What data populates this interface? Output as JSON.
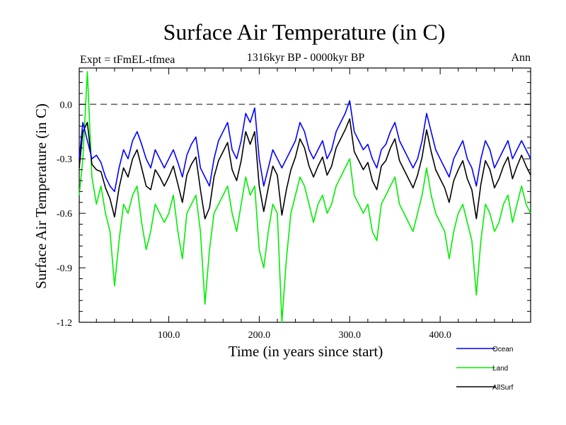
{
  "chart_data": {
    "type": "line",
    "title": "Surface Air Temperature (in C)",
    "subtitle": "1316kyr BP - 0000kyr BP",
    "left_label": "Expt = tFmEL-tfmea",
    "right_label": "Ann",
    "xlabel": "Time (in years since start)",
    "ylabel": "Surface Air Temperature (in C)",
    "xlim": [
      1,
      500
    ],
    "ylim": [
      -1.2,
      0.2
    ],
    "xticks": [
      100,
      200,
      300,
      400
    ],
    "xtick_labels": [
      "100.0",
      "200.0",
      "300.0",
      "400.0"
    ],
    "yticks": [
      -1.2,
      -0.9,
      -0.6,
      -0.3,
      0.0
    ],
    "ytick_labels": [
      "-1.2",
      "-0.9",
      "-0.6",
      "-0.3",
      "0.0"
    ],
    "reference_line": 0.0,
    "legend_position": "bottom-right",
    "series": [
      {
        "name": "Ocean",
        "color": "#0000ff",
        "x": [
          1,
          5,
          10,
          15,
          20,
          25,
          30,
          35,
          40,
          45,
          50,
          55,
          60,
          65,
          70,
          75,
          80,
          85,
          90,
          95,
          100,
          105,
          110,
          115,
          120,
          125,
          130,
          135,
          140,
          145,
          150,
          155,
          160,
          165,
          170,
          175,
          180,
          185,
          190,
          195,
          200,
          205,
          210,
          215,
          220,
          225,
          230,
          235,
          240,
          245,
          250,
          255,
          260,
          265,
          270,
          275,
          280,
          285,
          290,
          295,
          300,
          305,
          310,
          315,
          320,
          325,
          330,
          335,
          340,
          345,
          350,
          355,
          360,
          365,
          370,
          375,
          380,
          385,
          390,
          395,
          400,
          405,
          410,
          415,
          420,
          425,
          430,
          435,
          440,
          445,
          450,
          455,
          460,
          465,
          470,
          475,
          480,
          485,
          490,
          495,
          500
        ],
        "values": [
          -0.3,
          -0.1,
          -0.2,
          -0.3,
          -0.28,
          -0.32,
          -0.4,
          -0.45,
          -0.48,
          -0.35,
          -0.25,
          -0.3,
          -0.2,
          -0.15,
          -0.22,
          -0.3,
          -0.35,
          -0.25,
          -0.3,
          -0.35,
          -0.3,
          -0.25,
          -0.32,
          -0.4,
          -0.28,
          -0.22,
          -0.18,
          -0.35,
          -0.4,
          -0.45,
          -0.3,
          -0.2,
          -0.15,
          -0.1,
          -0.25,
          -0.3,
          -0.2,
          -0.05,
          -0.1,
          -0.02,
          -0.3,
          -0.45,
          -0.35,
          -0.25,
          -0.3,
          -0.35,
          -0.3,
          -0.25,
          -0.2,
          -0.1,
          -0.15,
          -0.25,
          -0.3,
          -0.25,
          -0.2,
          -0.3,
          -0.25,
          -0.15,
          -0.1,
          -0.05,
          0.02,
          -0.15,
          -0.2,
          -0.25,
          -0.22,
          -0.3,
          -0.35,
          -0.25,
          -0.22,
          -0.15,
          -0.1,
          -0.2,
          -0.25,
          -0.3,
          -0.35,
          -0.3,
          -0.2,
          -0.05,
          -0.15,
          -0.25,
          -0.3,
          -0.35,
          -0.4,
          -0.3,
          -0.25,
          -0.2,
          -0.3,
          -0.35,
          -0.45,
          -0.3,
          -0.2,
          -0.25,
          -0.35,
          -0.3,
          -0.25,
          -0.2,
          -0.3,
          -0.25,
          -0.2,
          -0.25,
          -0.3
        ]
      },
      {
        "name": "Land",
        "color": "#00ee00",
        "x": [
          1,
          5,
          10,
          15,
          20,
          25,
          30,
          35,
          40,
          45,
          50,
          55,
          60,
          65,
          70,
          75,
          80,
          85,
          90,
          95,
          100,
          105,
          110,
          115,
          120,
          125,
          130,
          135,
          140,
          145,
          150,
          155,
          160,
          165,
          170,
          175,
          180,
          185,
          190,
          195,
          200,
          205,
          210,
          215,
          220,
          225,
          230,
          235,
          240,
          245,
          250,
          255,
          260,
          265,
          270,
          275,
          280,
          285,
          290,
          295,
          300,
          305,
          310,
          315,
          320,
          325,
          330,
          335,
          340,
          345,
          350,
          355,
          360,
          365,
          370,
          375,
          380,
          385,
          390,
          395,
          400,
          405,
          410,
          415,
          420,
          425,
          430,
          435,
          440,
          445,
          450,
          455,
          460,
          465,
          470,
          475,
          480,
          485,
          490,
          495,
          500
        ],
        "values": [
          -0.5,
          -0.3,
          0.18,
          -0.4,
          -0.55,
          -0.45,
          -0.6,
          -0.7,
          -1.0,
          -0.75,
          -0.55,
          -0.6,
          -0.5,
          -0.45,
          -0.65,
          -0.8,
          -0.7,
          -0.55,
          -0.6,
          -0.65,
          -0.6,
          -0.5,
          -0.7,
          -0.85,
          -0.6,
          -0.55,
          -0.5,
          -0.7,
          -1.1,
          -0.8,
          -0.6,
          -0.55,
          -0.5,
          -0.45,
          -0.6,
          -0.7,
          -0.55,
          -0.4,
          -0.5,
          -0.45,
          -0.8,
          -0.9,
          -0.7,
          -0.55,
          -0.6,
          -1.2,
          -0.85,
          -0.6,
          -0.5,
          -0.4,
          -0.45,
          -0.55,
          -0.65,
          -0.55,
          -0.5,
          -0.6,
          -0.55,
          -0.45,
          -0.4,
          -0.35,
          -0.3,
          -0.5,
          -0.55,
          -0.6,
          -0.55,
          -0.7,
          -0.75,
          -0.55,
          -0.5,
          -0.45,
          -0.4,
          -0.55,
          -0.6,
          -0.65,
          -0.7,
          -0.6,
          -0.5,
          -0.35,
          -0.5,
          -0.6,
          -0.65,
          -0.7,
          -0.85,
          -0.7,
          -0.6,
          -0.55,
          -0.65,
          -0.75,
          -1.05,
          -0.75,
          -0.55,
          -0.6,
          -0.7,
          -0.65,
          -0.55,
          -0.5,
          -0.65,
          -0.55,
          -0.45,
          -0.55,
          -0.6
        ]
      },
      {
        "name": "AllSurf",
        "color": "#000000",
        "x": [
          1,
          5,
          10,
          15,
          20,
          25,
          30,
          35,
          40,
          45,
          50,
          55,
          60,
          65,
          70,
          75,
          80,
          85,
          90,
          95,
          100,
          105,
          110,
          115,
          120,
          125,
          130,
          135,
          140,
          145,
          150,
          155,
          160,
          165,
          170,
          175,
          180,
          185,
          190,
          195,
          200,
          205,
          210,
          215,
          220,
          225,
          230,
          235,
          240,
          245,
          250,
          255,
          260,
          265,
          270,
          275,
          280,
          285,
          290,
          295,
          300,
          305,
          310,
          315,
          320,
          325,
          330,
          335,
          340,
          345,
          350,
          355,
          360,
          365,
          370,
          375,
          380,
          385,
          390,
          395,
          400,
          405,
          410,
          415,
          420,
          425,
          430,
          435,
          440,
          445,
          450,
          455,
          460,
          465,
          470,
          475,
          480,
          485,
          490,
          495,
          500
        ],
        "values": [
          -0.35,
          -0.15,
          -0.1,
          -0.33,
          -0.36,
          -0.37,
          -0.46,
          -0.52,
          -0.62,
          -0.46,
          -0.35,
          -0.4,
          -0.3,
          -0.25,
          -0.35,
          -0.45,
          -0.47,
          -0.36,
          -0.4,
          -0.45,
          -0.4,
          -0.34,
          -0.44,
          -0.54,
          -0.39,
          -0.33,
          -0.29,
          -0.47,
          -0.63,
          -0.57,
          -0.4,
          -0.31,
          -0.26,
          -0.21,
          -0.36,
          -0.42,
          -0.31,
          -0.15,
          -0.22,
          -0.15,
          -0.45,
          -0.59,
          -0.46,
          -0.34,
          -0.39,
          -0.61,
          -0.47,
          -0.36,
          -0.29,
          -0.19,
          -0.24,
          -0.34,
          -0.4,
          -0.34,
          -0.29,
          -0.39,
          -0.34,
          -0.24,
          -0.19,
          -0.14,
          -0.08,
          -0.26,
          -0.31,
          -0.36,
          -0.32,
          -0.42,
          -0.47,
          -0.34,
          -0.31,
          -0.24,
          -0.19,
          -0.31,
          -0.36,
          -0.41,
          -0.46,
          -0.39,
          -0.29,
          -0.14,
          -0.26,
          -0.36,
          -0.41,
          -0.46,
          -0.54,
          -0.42,
          -0.36,
          -0.31,
          -0.41,
          -0.47,
          -0.63,
          -0.44,
          -0.31,
          -0.36,
          -0.46,
          -0.41,
          -0.34,
          -0.29,
          -0.41,
          -0.34,
          -0.28,
          -0.34,
          -0.39
        ]
      }
    ]
  }
}
